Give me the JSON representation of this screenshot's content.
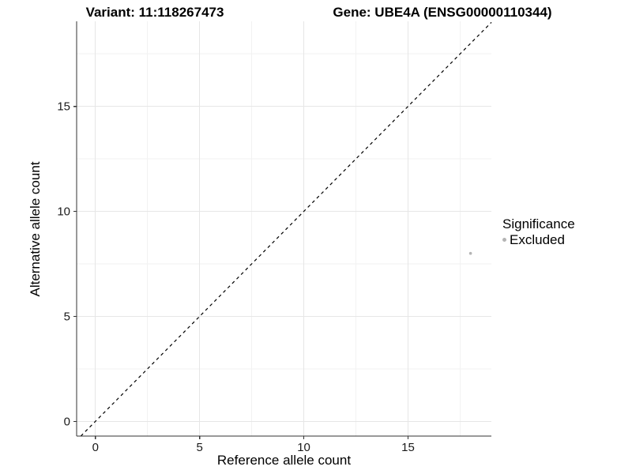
{
  "chart_data": {
    "type": "scatter",
    "titles": {
      "variant": "Variant: 11:118267473",
      "gene": "Gene: UBE4A (ENSG00000110344)"
    },
    "xlabel": "Reference allele count",
    "ylabel": "Alternative allele count",
    "xlim": [
      -0.9,
      19.0
    ],
    "ylim": [
      -0.7,
      19.05
    ],
    "xticks": [
      0,
      5,
      10,
      15
    ],
    "yticks": [
      0,
      5,
      10,
      15
    ],
    "minor_ticks_x": [
      2.5,
      7.5,
      12.5,
      17.5
    ],
    "minor_ticks_y": [
      2.5,
      7.5,
      12.5,
      17.5
    ],
    "grid": "major+minor",
    "identity_line": {
      "equation": "y = x",
      "style": "dashed",
      "color": "#000000"
    },
    "series": [
      {
        "name": "Excluded",
        "color": "#b4b4b4",
        "points": [
          [
            18,
            8
          ]
        ]
      }
    ],
    "legend": {
      "title": "Significance",
      "position": "right",
      "items": [
        {
          "label": "Excluded",
          "color": "#b4b4b4"
        }
      ]
    },
    "colors": {
      "background": "#ffffff",
      "grid_major": "#e6e6e6",
      "grid_minor": "#f2f2f2",
      "axis": "#333333",
      "tick_label": "#1a1a1a"
    }
  }
}
